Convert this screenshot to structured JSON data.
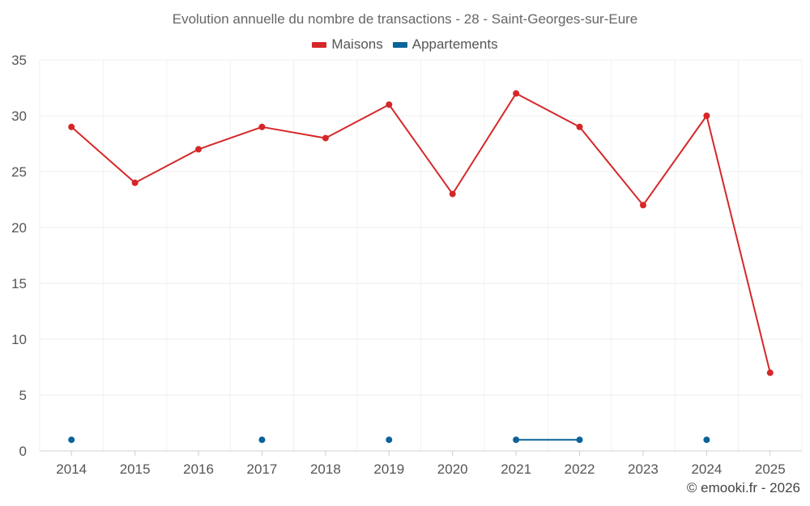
{
  "chart_data": {
    "type": "line",
    "title": "Evolution annuelle du nombre de transactions - 28 - Saint-Georges-sur-Eure",
    "xlabel": "",
    "ylabel": "",
    "categories": [
      "2014",
      "2015",
      "2016",
      "2017",
      "2018",
      "2019",
      "2020",
      "2021",
      "2022",
      "2023",
      "2024",
      "2025"
    ],
    "ylim": [
      0,
      35
    ],
    "yticks": [
      0,
      5,
      10,
      15,
      20,
      25,
      30,
      35
    ],
    "grid": true,
    "legend_position": "top-center",
    "series": [
      {
        "name": "Maisons",
        "color": "#d62728",
        "values": [
          29,
          24,
          27,
          29,
          28,
          31,
          23,
          32,
          29,
          22,
          30,
          7
        ]
      },
      {
        "name": "Appartements",
        "color": "#0a6399",
        "values": [
          1,
          null,
          null,
          1,
          null,
          1,
          null,
          1,
          1,
          null,
          1,
          null
        ]
      }
    ]
  },
  "credit": "© emooki.fr - 2026"
}
